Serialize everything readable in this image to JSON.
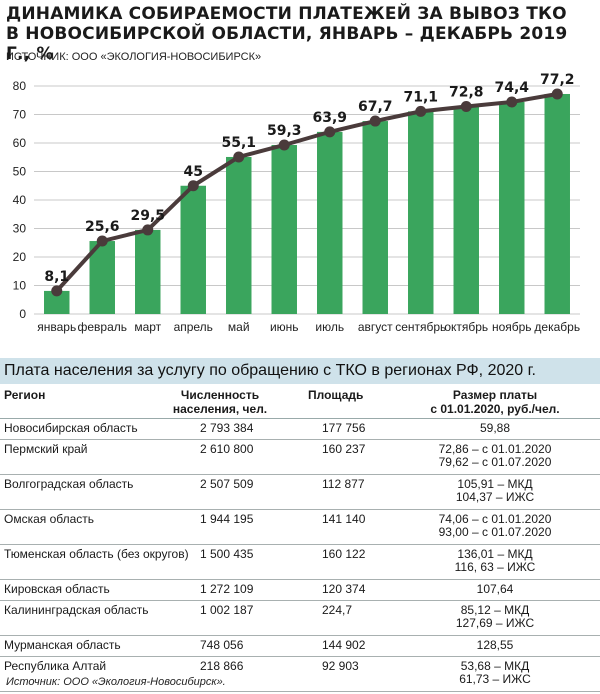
{
  "title": {
    "line1": "ДИНАМИКА СОБИРАЕМОСТИ ПЛАТЕЖЕЙ ЗА ВЫВОЗ ТКО",
    "line2": "В НОВОСИБИРСКОЙ ОБЛАСТИ, ЯНВАРЬ – ДЕКАБРЬ 2019 Г., %"
  },
  "source_top": "ИСТОЧНИК: ООО «ЭКОЛОГИЯ-НОВОСИБИРСК»",
  "colors": {
    "bar": "#3aa55d",
    "line": "#4a3b3b",
    "marker": "#4a3b3b",
    "grid": "#c8c8c8",
    "table_title_bg": "#cfe2ea"
  },
  "chart_data": {
    "type": "bar",
    "categories": [
      "январь",
      "февраль",
      "март",
      "апрель",
      "май",
      "июнь",
      "июль",
      "август",
      "сентябрь",
      "октябрь",
      "ноябрь",
      "декабрь"
    ],
    "values": [
      8.1,
      25.6,
      29.5,
      45,
      55.1,
      59.3,
      63.9,
      67.7,
      71.1,
      72.8,
      74.4,
      77.2
    ],
    "labels": [
      "8,1",
      "25,6",
      "29,5",
      "45",
      "55,1",
      "59,3",
      "63,9",
      "67,7",
      "71,1",
      "72,8",
      "74,4",
      "77,2"
    ],
    "overlay": "line",
    "ylim": [
      0,
      80
    ],
    "yticks": [
      0,
      10,
      20,
      30,
      40,
      50,
      60,
      70,
      80
    ],
    "grid": true,
    "legend": "none"
  },
  "table": {
    "title": "Плата населения за услугу по обращению с ТКО в регионах РФ, 2020 г.",
    "headers": {
      "region": "Регион",
      "population_1": "Численность",
      "population_2": "населения, чел.",
      "area": "Площадь",
      "fee_1": "Размер платы",
      "fee_2": "с 01.01.2020, руб./чел."
    },
    "rows": [
      {
        "region": "Новосибирская область",
        "population": "2 793 384",
        "area": "177 756",
        "fee": [
          "59,88"
        ]
      },
      {
        "region": "Пермский край",
        "population": "2 610 800",
        "area": "160 237",
        "fee": [
          "72,86 – с 01.01.2020",
          "79,62 – с 01.07.2020"
        ]
      },
      {
        "region": "Волгоградская область",
        "population": "2 507 509",
        "area": "112 877",
        "fee": [
          "105,91 – МКД",
          "104,37 – ИЖС"
        ]
      },
      {
        "region": "Омская область",
        "population": "1 944 195",
        "area": "141 140",
        "fee": [
          "74,06 – с 01.01.2020",
          "93,00 – с 01.07.2020"
        ]
      },
      {
        "region": "Тюменская область (без округов)",
        "population": "1 500 435",
        "area": "160 122",
        "fee": [
          "136,01 – МКД",
          "116, 63 – ИЖС"
        ]
      },
      {
        "region": "Кировская область",
        "population": "1 272 109",
        "area": "120 374",
        "fee": [
          "107,64"
        ]
      },
      {
        "region": "Калининградская область",
        "population": "1 002 187",
        "area": "224,7",
        "fee": [
          "85,12 – МКД",
          "127,69 – ИЖС"
        ]
      },
      {
        "region": "Мурманская область",
        "population": "748 056",
        "area": "144 902",
        "fee": [
          "128,55"
        ]
      },
      {
        "region": "Республика Алтай",
        "population": "218 866",
        "area": "92 903",
        "fee": [
          "53,68 – МКД",
          "61,73 – ИЖС"
        ]
      }
    ]
  },
  "source_bottom": "Источник: ООО «Экология-Новосибирск»."
}
